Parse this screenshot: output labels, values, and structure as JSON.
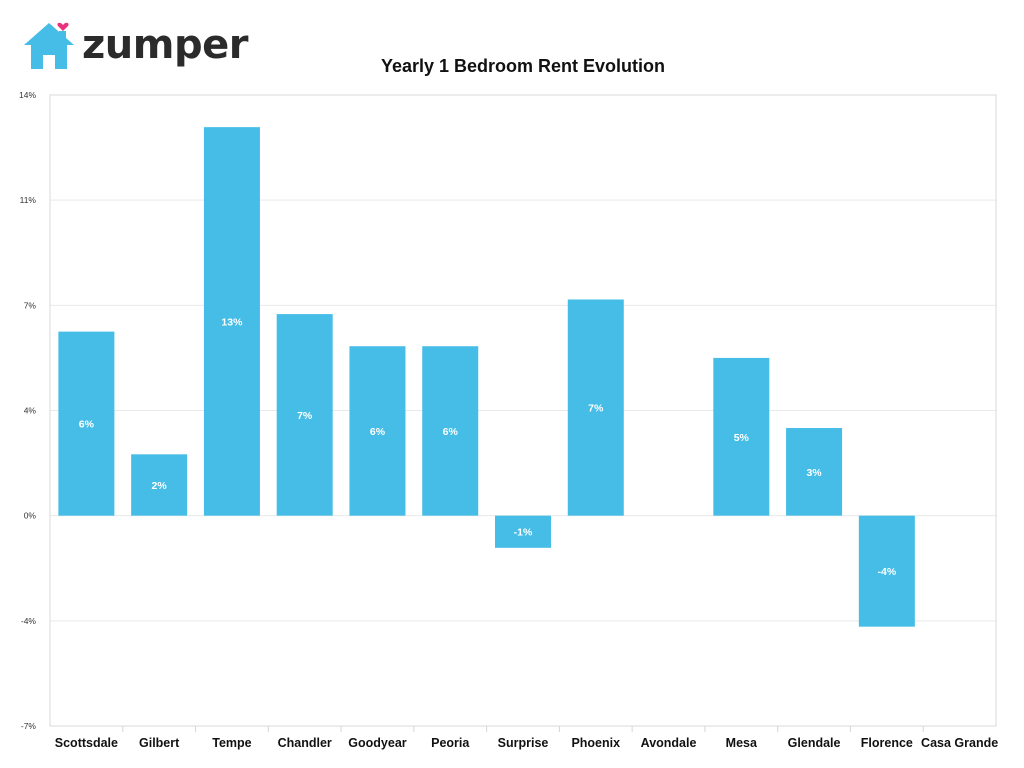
{
  "brand": {
    "name": "zumper",
    "house_color": "#45bde6",
    "heart_color": "#e8327c"
  },
  "chart_data": {
    "type": "bar",
    "title": "Yearly 1 Bedroom Rent Evolution",
    "xlabel": "",
    "ylabel": "",
    "categories": [
      "Scottsdale",
      "Gilbert",
      "Tempe",
      "Chandler",
      "Goodyear",
      "Peoria",
      "Surprise",
      "Phoenix",
      "Avondale",
      "Mesa",
      "Glendale",
      "Florence",
      "Casa Grande"
    ],
    "values": [
      6.3,
      2.1,
      13.3,
      6.9,
      5.8,
      5.8,
      -1.1,
      7.4,
      null,
      5.4,
      3.0,
      -3.8,
      null
    ],
    "data_labels": [
      "6%",
      "2%",
      "13%",
      "7%",
      "6%",
      "6%",
      "-1%",
      "7%",
      "",
      "5%",
      "3%",
      "-4%",
      ""
    ],
    "ylim": [
      -7.2,
      14.4
    ],
    "yticks": [
      -7.2,
      -3.6,
      0,
      3.6,
      7.2,
      10.8,
      14.4
    ],
    "ytick_labels": [
      "-7%",
      "-4%",
      "0%",
      "4%",
      "7%",
      "11%",
      "14%"
    ],
    "bar_color": "#45bde6",
    "grid": true,
    "legend": "none"
  }
}
